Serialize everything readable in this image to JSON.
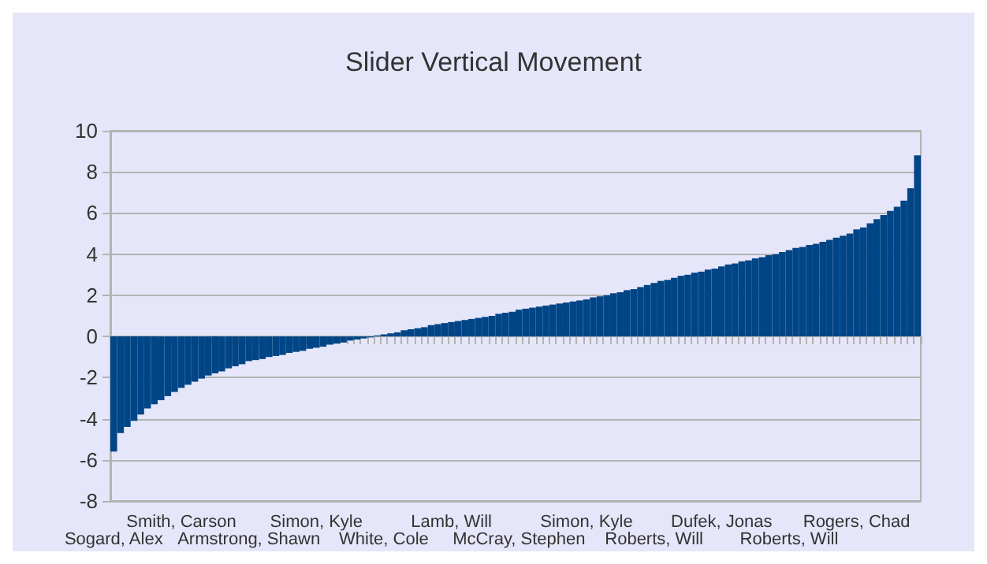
{
  "chart_data": {
    "type": "bar",
    "title": "Slider Vertical Movement",
    "categories": [
      "Sogard, Alex",
      null,
      null,
      null,
      null,
      null,
      null,
      null,
      null,
      null,
      "Smith, Carson",
      null,
      null,
      null,
      null,
      null,
      null,
      null,
      null,
      null,
      "Armstrong, Shawn",
      null,
      null,
      null,
      null,
      null,
      null,
      null,
      null,
      null,
      "Simon, Kyle",
      null,
      null,
      null,
      null,
      null,
      null,
      null,
      null,
      null,
      "White, Cole",
      null,
      null,
      null,
      null,
      null,
      null,
      null,
      null,
      null,
      "Lamb, Will",
      null,
      null,
      null,
      null,
      null,
      null,
      null,
      null,
      null,
      "McCray, Stephen",
      null,
      null,
      null,
      null,
      null,
      null,
      null,
      null,
      null,
      "Simon, Kyle",
      null,
      null,
      null,
      null,
      null,
      null,
      null,
      null,
      null,
      "Roberts, Will",
      null,
      null,
      null,
      null,
      null,
      null,
      null,
      null,
      null,
      "Dufek, Jonas",
      null,
      null,
      null,
      null,
      null,
      null,
      null,
      null,
      null,
      "Roberts, Will",
      null,
      null,
      null,
      null,
      null,
      null,
      null,
      null,
      null,
      "Rogers, Chad",
      null,
      null,
      null,
      null,
      null,
      null,
      null,
      null,
      null
    ],
    "values": [
      -5.6,
      -4.7,
      -4.4,
      -4.1,
      -3.8,
      -3.5,
      -3.3,
      -3.1,
      -2.9,
      -2.7,
      -2.5,
      -2.35,
      -2.2,
      -2.05,
      -1.9,
      -1.8,
      -1.7,
      -1.55,
      -1.45,
      -1.35,
      -1.2,
      -1.15,
      -1.1,
      -1.0,
      -0.95,
      -0.9,
      -0.8,
      -0.75,
      -0.7,
      -0.6,
      -0.55,
      -0.5,
      -0.4,
      -0.35,
      -0.3,
      -0.2,
      -0.15,
      -0.1,
      -0.05,
      0.05,
      0.1,
      0.15,
      0.2,
      0.3,
      0.35,
      0.4,
      0.45,
      0.55,
      0.6,
      0.65,
      0.7,
      0.75,
      0.8,
      0.85,
      0.9,
      0.95,
      1.0,
      1.1,
      1.15,
      1.2,
      1.3,
      1.35,
      1.4,
      1.45,
      1.5,
      1.55,
      1.6,
      1.65,
      1.7,
      1.75,
      1.8,
      1.9,
      1.95,
      2.0,
      2.1,
      2.15,
      2.25,
      2.3,
      2.4,
      2.5,
      2.6,
      2.7,
      2.75,
      2.85,
      2.95,
      3.0,
      3.1,
      3.15,
      3.25,
      3.3,
      3.4,
      3.5,
      3.55,
      3.65,
      3.7,
      3.8,
      3.85,
      3.95,
      4.0,
      4.1,
      4.2,
      4.3,
      4.35,
      4.45,
      4.5,
      4.6,
      4.7,
      4.8,
      4.9,
      5.0,
      5.2,
      5.3,
      5.5,
      5.7,
      5.9,
      6.1,
      6.3,
      6.6,
      7.2,
      8.8
    ],
    "color": "#004586",
    "ylim": [
      -8,
      10
    ],
    "yticks": [
      -8,
      -6,
      -4,
      -2,
      0,
      2,
      4,
      6,
      8,
      10
    ],
    "grid": "y"
  }
}
